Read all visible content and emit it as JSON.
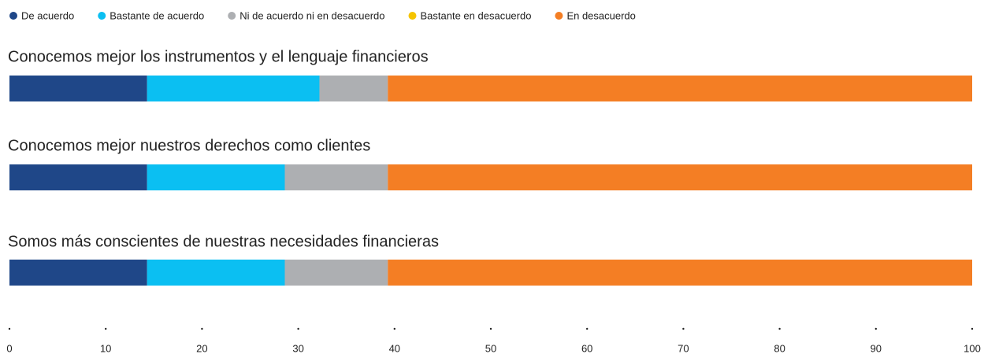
{
  "chart_data": {
    "type": "stacked_bar_horizontal",
    "categories": [
      "Conocemos mejor los instrumentos y el lenguaje financieros",
      "Conocemos mejor nuestros derechos como clientes",
      "Somos más conscientes de nuestras necesidades financieras"
    ],
    "series": [
      {
        "name": "De acuerdo",
        "color": "#1f4788",
        "values": [
          14.3,
          14.3,
          14.3
        ]
      },
      {
        "name": "Bastante de acuerdo",
        "color": "#0bbff2",
        "values": [
          17.9,
          14.3,
          14.3
        ]
      },
      {
        "name": "Ni de acuerdo ni en desacuerdo",
        "color": "#adafb2",
        "values": [
          7.1,
          10.7,
          10.7
        ]
      },
      {
        "name": "Bastante en desacuerdo",
        "color": "#f5c400",
        "values": [
          0,
          0,
          0
        ]
      },
      {
        "name": "En desacuerdo",
        "color": "#f47e24",
        "values": [
          60.7,
          60.7,
          60.7
        ]
      }
    ],
    "xlim": [
      0,
      100
    ],
    "xticks": [
      0,
      10,
      20,
      30,
      40,
      50,
      60,
      70,
      80,
      90,
      100
    ]
  }
}
